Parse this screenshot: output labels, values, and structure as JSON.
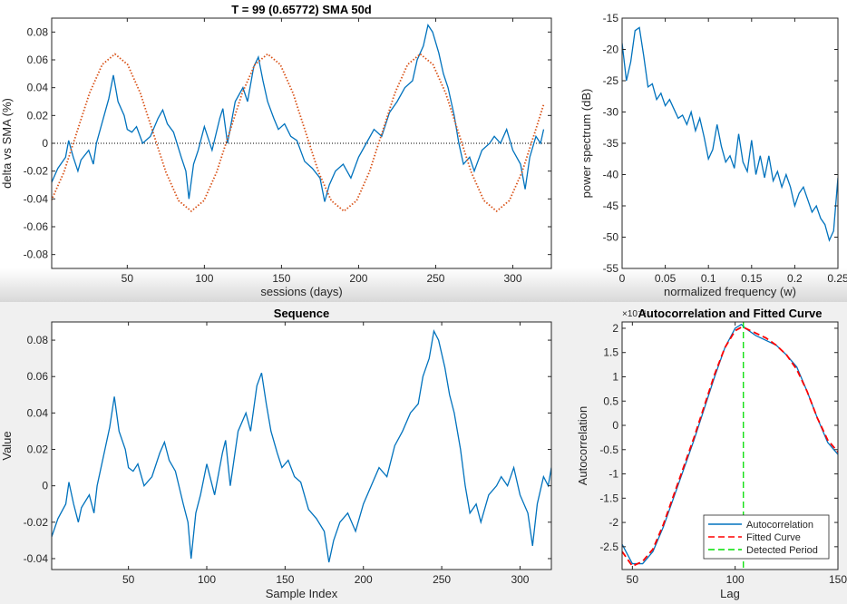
{
  "chart_data": [
    {
      "type": "line",
      "title": "T = 99 (0.65772)      SMA 50d",
      "x_label": "sessions (days)",
      "y_label": "delta vs SMA (%)",
      "xlim": [
        1,
        325
      ],
      "ylim": [
        -0.09,
        0.09
      ],
      "xticks": [
        50,
        100,
        150,
        200,
        250,
        300
      ],
      "yticks": [
        -0.08,
        -0.06,
        -0.04,
        -0.02,
        0,
        0.02,
        0.04,
        0.06,
        0.08
      ],
      "reference_line": 0,
      "series": [
        {
          "color": "#0072bd",
          "style": "solid",
          "x": [
            1,
            5,
            10,
            12,
            15,
            18,
            20,
            25,
            28,
            30,
            35,
            38,
            41,
            44,
            48,
            50,
            53,
            56,
            60,
            65,
            70,
            73,
            76,
            80,
            85,
            88,
            90,
            93,
            96,
            100,
            105,
            110,
            112,
            115,
            120,
            125,
            128,
            132,
            135,
            138,
            141,
            145,
            148,
            152,
            156,
            160,
            165,
            170,
            175,
            178,
            181,
            185,
            190,
            195,
            200,
            205,
            210,
            215,
            220,
            225,
            230,
            235,
            238,
            242,
            245,
            248,
            252,
            255,
            258,
            262,
            265,
            268,
            272,
            275,
            280,
            285,
            288,
            292,
            296,
            300,
            305,
            308,
            311,
            315,
            318,
            320
          ],
          "values": [
            -0.028,
            -0.018,
            -0.01,
            0.002,
            -0.01,
            -0.02,
            -0.012,
            -0.005,
            -0.015,
            0.0,
            0.02,
            0.032,
            0.049,
            0.03,
            0.02,
            0.01,
            0.008,
            0.012,
            0.0,
            0.005,
            0.018,
            0.024,
            0.014,
            0.008,
            -0.01,
            -0.02,
            -0.04,
            -0.015,
            -0.005,
            0.012,
            -0.005,
            0.018,
            0.025,
            0.0,
            0.03,
            0.04,
            0.03,
            0.055,
            0.062,
            0.045,
            0.03,
            0.018,
            0.01,
            0.014,
            0.005,
            0.002,
            -0.013,
            -0.018,
            -0.025,
            -0.042,
            -0.03,
            -0.02,
            -0.015,
            -0.025,
            -0.01,
            0.0,
            0.01,
            0.005,
            0.022,
            0.03,
            0.04,
            0.045,
            0.06,
            0.07,
            0.085,
            0.08,
            0.065,
            0.05,
            0.04,
            0.02,
            0.0,
            -0.015,
            -0.01,
            -0.02,
            -0.005,
            0.0,
            0.005,
            0.0,
            0.01,
            -0.005,
            -0.015,
            -0.033,
            -0.01,
            0.005,
            0.0,
            0.01
          ]
        },
        {
          "color": "#d95319",
          "style": "dotted",
          "x": [
            0.75,
            9,
            17.25,
            25.5,
            33.75,
            42,
            50.25,
            58.5,
            66.75,
            75,
            83.25,
            91.5,
            99.75,
            108,
            116.25,
            124.5,
            132.75,
            141,
            149.25,
            157.5,
            165.75,
            174,
            182.25,
            190.5,
            198.75,
            207,
            215.25,
            223.5,
            231.75,
            240,
            248.25,
            256.5,
            264.75,
            273,
            281.25,
            289.5,
            297.75,
            306,
            314.25,
            320
          ],
          "values": [
            -0.0412,
            -0.0206,
            0.0077,
            0.036,
            0.0566,
            0.0642,
            0.0566,
            0.036,
            0.0077,
            -0.0206,
            -0.0412,
            -0.0488,
            -0.0412,
            -0.0206,
            0.0077,
            0.036,
            0.0566,
            0.0642,
            0.0566,
            0.036,
            0.0077,
            -0.0206,
            -0.0412,
            -0.0488,
            -0.0412,
            -0.0206,
            0.0077,
            0.036,
            0.0566,
            0.0642,
            0.0566,
            0.036,
            0.0077,
            -0.0206,
            -0.0412,
            -0.0488,
            -0.0412,
            -0.0206,
            0.0077,
            0.0279
          ]
        }
      ]
    },
    {
      "type": "line",
      "x_label": "normalized frequency (w)",
      "y_label": "power spectrum (dB)",
      "xlim": [
        0,
        0.25
      ],
      "ylim": [
        -55,
        -15
      ],
      "xticks": [
        0,
        0.05,
        0.1,
        0.15,
        0.2,
        0.25
      ],
      "yticks": [
        -55,
        -50,
        -45,
        -40,
        -35,
        -30,
        -25,
        -20,
        -15
      ],
      "series": [
        {
          "color": "#0072bd",
          "style": "solid",
          "x": [
            0,
            0.005,
            0.01,
            0.015,
            0.02,
            0.025,
            0.03,
            0.035,
            0.04,
            0.045,
            0.05,
            0.055,
            0.06,
            0.065,
            0.07,
            0.075,
            0.08,
            0.085,
            0.09,
            0.095,
            0.1,
            0.105,
            0.11,
            0.115,
            0.12,
            0.125,
            0.13,
            0.135,
            0.14,
            0.145,
            0.15,
            0.155,
            0.16,
            0.165,
            0.17,
            0.175,
            0.18,
            0.185,
            0.19,
            0.195,
            0.2,
            0.205,
            0.21,
            0.215,
            0.22,
            0.225,
            0.23,
            0.235,
            0.24,
            0.245,
            0.25
          ],
          "values": [
            -19,
            -25,
            -22,
            -17,
            -16.5,
            -21,
            -26,
            -25.5,
            -28,
            -27,
            -29,
            -28,
            -29.5,
            -31,
            -30.5,
            -32,
            -30,
            -33,
            -31,
            -34,
            -37.5,
            -36,
            -32,
            -35.5,
            -38,
            -37,
            -39,
            -33.5,
            -38,
            -39.5,
            -34.5,
            -40,
            -37,
            -40.5,
            -37,
            -41,
            -39.5,
            -42,
            -40,
            -42,
            -45,
            -43,
            -42,
            -44,
            -46,
            -45,
            -47,
            -48,
            -50.5,
            -49,
            -40.5
          ]
        }
      ]
    },
    {
      "type": "line",
      "title": "Sequence",
      "x_label": "Sample Index",
      "y_label": "Value",
      "xlim": [
        1,
        320
      ],
      "ylim": [
        -0.046,
        0.09
      ],
      "xticks": [
        50,
        100,
        150,
        200,
        250,
        300
      ],
      "yticks": [
        -0.04,
        -0.02,
        0,
        0.02,
        0.04,
        0.06,
        0.08
      ],
      "series": [
        {
          "color": "#0072bd",
          "style": "solid",
          "x": [
            1,
            5,
            10,
            12,
            15,
            18,
            20,
            25,
            28,
            30,
            35,
            38,
            41,
            44,
            48,
            50,
            53,
            56,
            60,
            65,
            70,
            73,
            76,
            80,
            85,
            88,
            90,
            93,
            96,
            100,
            105,
            110,
            112,
            115,
            120,
            125,
            128,
            132,
            135,
            138,
            141,
            145,
            148,
            152,
            156,
            160,
            165,
            170,
            175,
            178,
            181,
            185,
            190,
            195,
            200,
            205,
            210,
            215,
            220,
            225,
            230,
            235,
            238,
            242,
            245,
            248,
            252,
            255,
            258,
            262,
            265,
            268,
            272,
            275,
            280,
            285,
            288,
            292,
            296,
            300,
            305,
            308,
            311,
            315,
            318,
            320
          ],
          "values": [
            -0.028,
            -0.018,
            -0.01,
            0.002,
            -0.01,
            -0.02,
            -0.012,
            -0.005,
            -0.015,
            0.0,
            0.02,
            0.032,
            0.049,
            0.03,
            0.02,
            0.01,
            0.008,
            0.012,
            0.0,
            0.005,
            0.018,
            0.024,
            0.014,
            0.008,
            -0.01,
            -0.02,
            -0.04,
            -0.015,
            -0.005,
            0.012,
            -0.005,
            0.018,
            0.025,
            0.0,
            0.03,
            0.04,
            0.03,
            0.055,
            0.062,
            0.045,
            0.03,
            0.018,
            0.01,
            0.014,
            0.005,
            0.002,
            -0.013,
            -0.018,
            -0.025,
            -0.042,
            -0.03,
            -0.02,
            -0.015,
            -0.025,
            -0.01,
            0.0,
            0.01,
            0.005,
            0.022,
            0.03,
            0.04,
            0.045,
            0.06,
            0.07,
            0.085,
            0.08,
            0.065,
            0.05,
            0.04,
            0.02,
            0.0,
            -0.015,
            -0.01,
            -0.02,
            -0.005,
            0.0,
            0.005,
            0.0,
            0.01,
            -0.005,
            -0.015,
            -0.033,
            -0.01,
            0.005,
            0.0,
            0.01
          ]
        }
      ]
    },
    {
      "type": "line",
      "title": "Autocorrelation and Fitted Curve",
      "x_label": "Lag",
      "y_label": "Autocorrelation",
      "y_exponent": "×10⁻⁴",
      "xlim": [
        45,
        150
      ],
      "ylim": [
        -2.97,
        2.13
      ],
      "xticks": [
        50,
        100,
        150
      ],
      "yticks": [
        -2.5,
        -2,
        -1.5,
        -1,
        -0.5,
        0,
        0.5,
        1,
        1.5,
        2
      ],
      "legend": "southeast",
      "series": [
        {
          "name": "Autocorrelation",
          "color": "#0072bd",
          "style": "solid",
          "x": [
            45,
            50,
            55,
            60,
            65,
            70,
            75,
            80,
            85,
            90,
            95,
            100,
            103,
            105,
            110,
            115,
            120,
            125,
            130,
            135,
            140,
            145,
            150
          ],
          "values": [
            -2.45,
            -2.85,
            -2.85,
            -2.6,
            -2.1,
            -1.5,
            -0.9,
            -0.3,
            0.35,
            1.0,
            1.6,
            2.0,
            2.08,
            2.0,
            1.85,
            1.75,
            1.65,
            1.45,
            1.2,
            0.7,
            0.15,
            -0.35,
            -0.6
          ]
        },
        {
          "name": "Fitted Curve",
          "color": "#ff0000",
          "style": "dashed",
          "x": [
            45,
            50,
            55,
            60,
            65,
            70,
            75,
            80,
            85,
            90,
            95,
            100,
            103,
            105,
            110,
            115,
            120,
            125,
            130,
            135,
            140,
            145,
            150
          ],
          "values": [
            -2.6,
            -2.9,
            -2.8,
            -2.55,
            -2.05,
            -1.45,
            -0.85,
            -0.25,
            0.4,
            1.05,
            1.6,
            1.95,
            2.02,
            2.0,
            1.9,
            1.8,
            1.65,
            1.45,
            1.15,
            0.7,
            0.15,
            -0.3,
            -0.55
          ]
        },
        {
          "name": "Detected Period",
          "color": "#00e000",
          "style": "dashed",
          "x": 104
        }
      ]
    }
  ]
}
